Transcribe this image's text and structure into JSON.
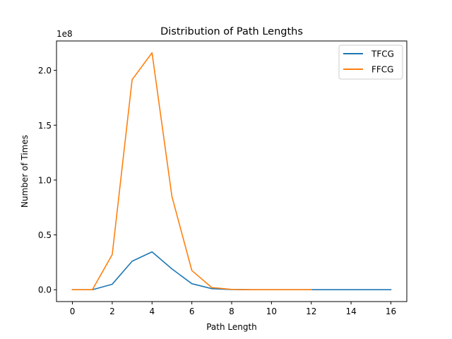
{
  "chart_data": {
    "type": "line",
    "title": "Distribution of Path Lengths",
    "xlabel": "Path Length",
    "ylabel": "Number of Times",
    "y_offset_label": "1e8",
    "xlim": [
      -0.8,
      16.8
    ],
    "ylim": [
      -0.108,
      2.268
    ],
    "xticks": [
      0,
      2,
      4,
      6,
      8,
      10,
      12,
      14,
      16
    ],
    "xtick_labels": [
      "0",
      "2",
      "4",
      "6",
      "8",
      "10",
      "12",
      "14",
      "16"
    ],
    "yticks": [
      0.0,
      0.5,
      1.0,
      1.5,
      2.0
    ],
    "ytick_labels": [
      "0.0",
      "0.5",
      "1.0",
      "1.5",
      "2.0"
    ],
    "y_unit_note": "y values are in units of 1e8",
    "grid": false,
    "legend_position": "top-right",
    "series": [
      {
        "name": "TFCG",
        "color": "#1f77b4",
        "x": [
          0,
          1,
          2,
          3,
          4,
          5,
          6,
          7,
          8,
          9,
          10,
          11,
          12,
          13,
          14,
          15,
          16
        ],
        "y": [
          0.0,
          0.0,
          0.05,
          0.26,
          0.345,
          0.19,
          0.055,
          0.01,
          0.002,
          0.0,
          0.0,
          0.0,
          0.0,
          0.0,
          0.0,
          0.0,
          0.0
        ]
      },
      {
        "name": "FFCG",
        "color": "#ff7f0e",
        "x": [
          0,
          1,
          2,
          3,
          4,
          5,
          6,
          7,
          8,
          9,
          10,
          11,
          12
        ],
        "y": [
          0.0,
          0.0,
          0.32,
          1.915,
          2.16,
          0.85,
          0.175,
          0.02,
          0.003,
          0.0,
          0.0,
          0.0,
          0.0
        ]
      }
    ]
  }
}
